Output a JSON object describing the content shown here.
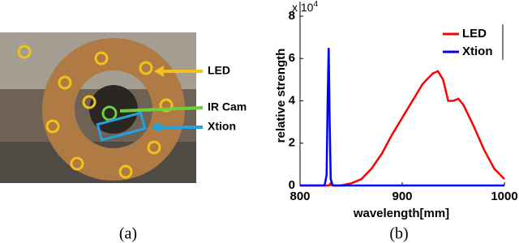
{
  "figure_a": {
    "labels": [
      "LED",
      "IR Cam",
      "Xtion"
    ],
    "caption": "(a)"
  },
  "chart_data": {
    "type": "line",
    "caption": "(b)",
    "xlabel": "wavelength[mm]",
    "ylabel": "relative strength",
    "y_multiplier": {
      "base": "x 10",
      "exponent": "4"
    },
    "x": [
      800,
      820,
      824,
      826,
      827,
      828,
      829,
      830,
      832,
      835,
      840,
      850,
      860,
      870,
      880,
      890,
      900,
      910,
      920,
      930,
      935,
      940,
      945,
      950,
      955,
      960,
      970,
      980,
      990,
      1000
    ],
    "series": [
      {
        "name": "LED",
        "color": "#ff0000",
        "values": [
          0,
          0,
          0,
          0,
          0,
          0,
          500,
          1000,
          0,
          0,
          0,
          1000,
          3000,
          8000,
          15000,
          24000,
          32000,
          40000,
          48000,
          53000,
          54000,
          50000,
          40000,
          40000,
          41000,
          38000,
          28000,
          17000,
          8000,
          3000
        ]
      },
      {
        "name": "Xtion",
        "color": "#0000ff",
        "values": [
          0,
          0,
          0,
          5000,
          40000,
          65000,
          30000,
          3000,
          0,
          0,
          0,
          0,
          0,
          0,
          0,
          0,
          0,
          0,
          0,
          0,
          0,
          0,
          0,
          0,
          0,
          0,
          0,
          0,
          0,
          0
        ]
      }
    ],
    "xlim": [
      800,
      1000
    ],
    "xticks": [
      800,
      900,
      1000
    ],
    "ylim": [
      0,
      80000
    ],
    "yticks": [
      {
        "value": 0,
        "label": "0"
      },
      {
        "value": 20000,
        "label": "2"
      },
      {
        "value": 40000,
        "label": "4"
      },
      {
        "value": 60000,
        "label": "6"
      },
      {
        "value": 80000,
        "label": "8"
      }
    ],
    "legend": "upper right"
  }
}
